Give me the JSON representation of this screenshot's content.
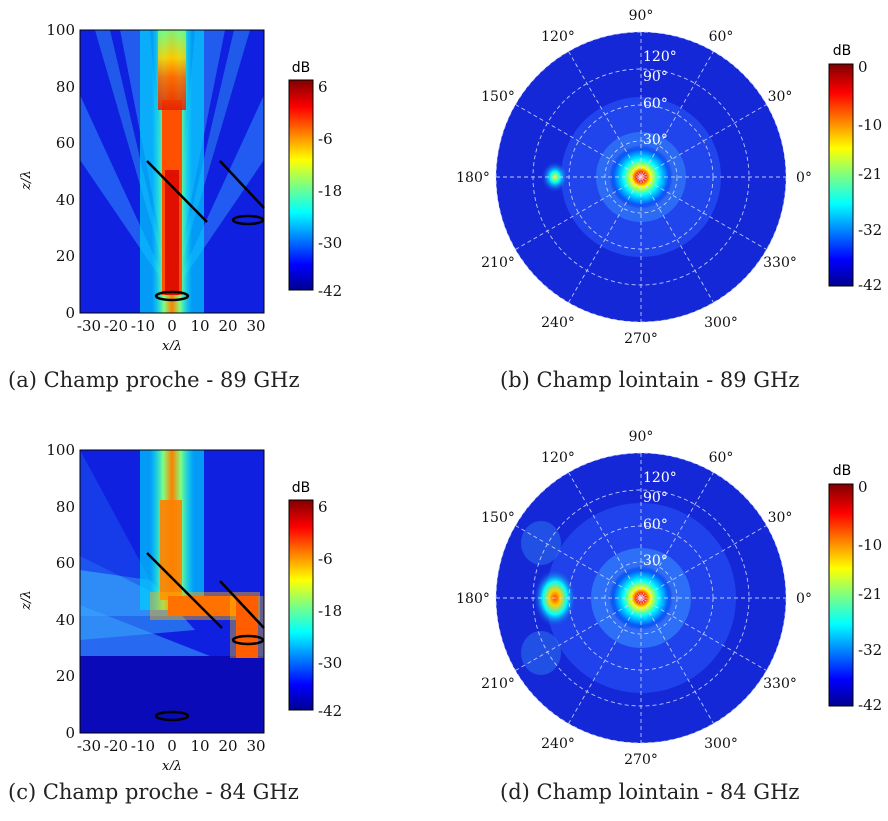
{
  "figure": {
    "panels": [
      {
        "id": "a",
        "caption": "(a) Champ proche - 89 GHz",
        "chart_data": {
          "type": "heatmap",
          "xlabel": "x/λ",
          "ylabel": "z/λ",
          "xticks": [
            "-30",
            "-20",
            "-10",
            "0",
            "10",
            "20",
            "30"
          ],
          "yticks": [
            "0",
            "20",
            "40",
            "60",
            "80",
            "100"
          ],
          "xlim": [
            -33,
            33
          ],
          "ylim": [
            0,
            100
          ],
          "colorbar": {
            "label": "dB",
            "ticks": [
              "6",
              "-6",
              "-18",
              "-30",
              "-42"
            ],
            "range": [
              -42,
              6
            ]
          },
          "beam": "vertical along x=0 from z=5 to z=100",
          "lines": [
            {
              "x": [
                -9,
                12
              ],
              "y": [
                53,
                31
              ]
            },
            {
              "x": [
                18,
                33
              ],
              "y": [
                53,
                37
              ]
            }
          ],
          "ellipses": [
            {
              "cx": 0,
              "cy": 5,
              "rx": 5.5,
              "ry": 1.4
            },
            {
              "cx": 26,
              "cy": 32,
              "rx": 5.5,
              "ry": 1.4
            }
          ]
        }
      },
      {
        "id": "b",
        "caption": "(b) Champ lointain - 89 GHz",
        "chart_data": {
          "type": "heatmap",
          "projection": "polar",
          "angle_labels": [
            "0°",
            "30°",
            "60°",
            "90°",
            "120°",
            "150°",
            "180°",
            "210°",
            "240°",
            "270°",
            "300°",
            "330°"
          ],
          "radial_labels": [
            "30°",
            "60°",
            "90°",
            "120°"
          ],
          "colorbar": {
            "label": "dB",
            "ticks": [
              "0",
              "-10",
              "-21",
              "-32",
              "-42"
            ],
            "range": [
              -42,
              0
            ]
          },
          "main_lobe": "centre (boresight)",
          "secondary_lobes": [
            "180° direction, weak"
          ]
        }
      },
      {
        "id": "c",
        "caption": "(c) Champ proche - 84 GHz",
        "chart_data": {
          "type": "heatmap",
          "xlabel": "x/λ",
          "ylabel": "z/λ",
          "xticks": [
            "-30",
            "-20",
            "-10",
            "0",
            "10",
            "20",
            "30"
          ],
          "yticks": [
            "0",
            "20",
            "40",
            "60",
            "80",
            "100"
          ],
          "xlim": [
            -33,
            33
          ],
          "ylim": [
            0,
            100
          ],
          "colorbar": {
            "label": "dB",
            "ticks": [
              "6",
              "-6",
              "-18",
              "-30",
              "-42"
            ],
            "range": [
              -42,
              6
            ]
          },
          "beam": "reflected horizontally at z=43 toward x=27 then down to z=28",
          "lines": [
            {
              "x": [
                -9,
                17
              ],
              "y": [
                53,
                35
              ]
            },
            {
              "x": [
                18,
                33
              ],
              "y": [
                53,
                37
              ]
            }
          ],
          "ellipses": [
            {
              "cx": 0,
              "cy": 5,
              "rx": 5.5,
              "ry": 1.4
            },
            {
              "cx": 26,
              "cy": 32,
              "rx": 5.5,
              "ry": 1.4
            }
          ]
        }
      },
      {
        "id": "d",
        "caption": "(d) Champ lointain - 84 GHz",
        "chart_data": {
          "type": "heatmap",
          "projection": "polar",
          "angle_labels": [
            "0°",
            "30°",
            "60°",
            "90°",
            "120°",
            "150°",
            "180°",
            "210°",
            "240°",
            "270°",
            "300°",
            "330°"
          ],
          "radial_labels": [
            "30°",
            "60°",
            "90°",
            "120°"
          ],
          "colorbar": {
            "label": "dB",
            "ticks": [
              "0",
              "-10",
              "-21",
              "-32",
              "-42"
            ],
            "range": [
              -42,
              0
            ]
          },
          "main_lobe": "centre (boresight)",
          "secondary_lobes": [
            "180° direction, stronger"
          ]
        }
      }
    ]
  },
  "colors": {
    "jet_low": "#00008f",
    "jet_high": "#800000",
    "outline": "#000000"
  }
}
